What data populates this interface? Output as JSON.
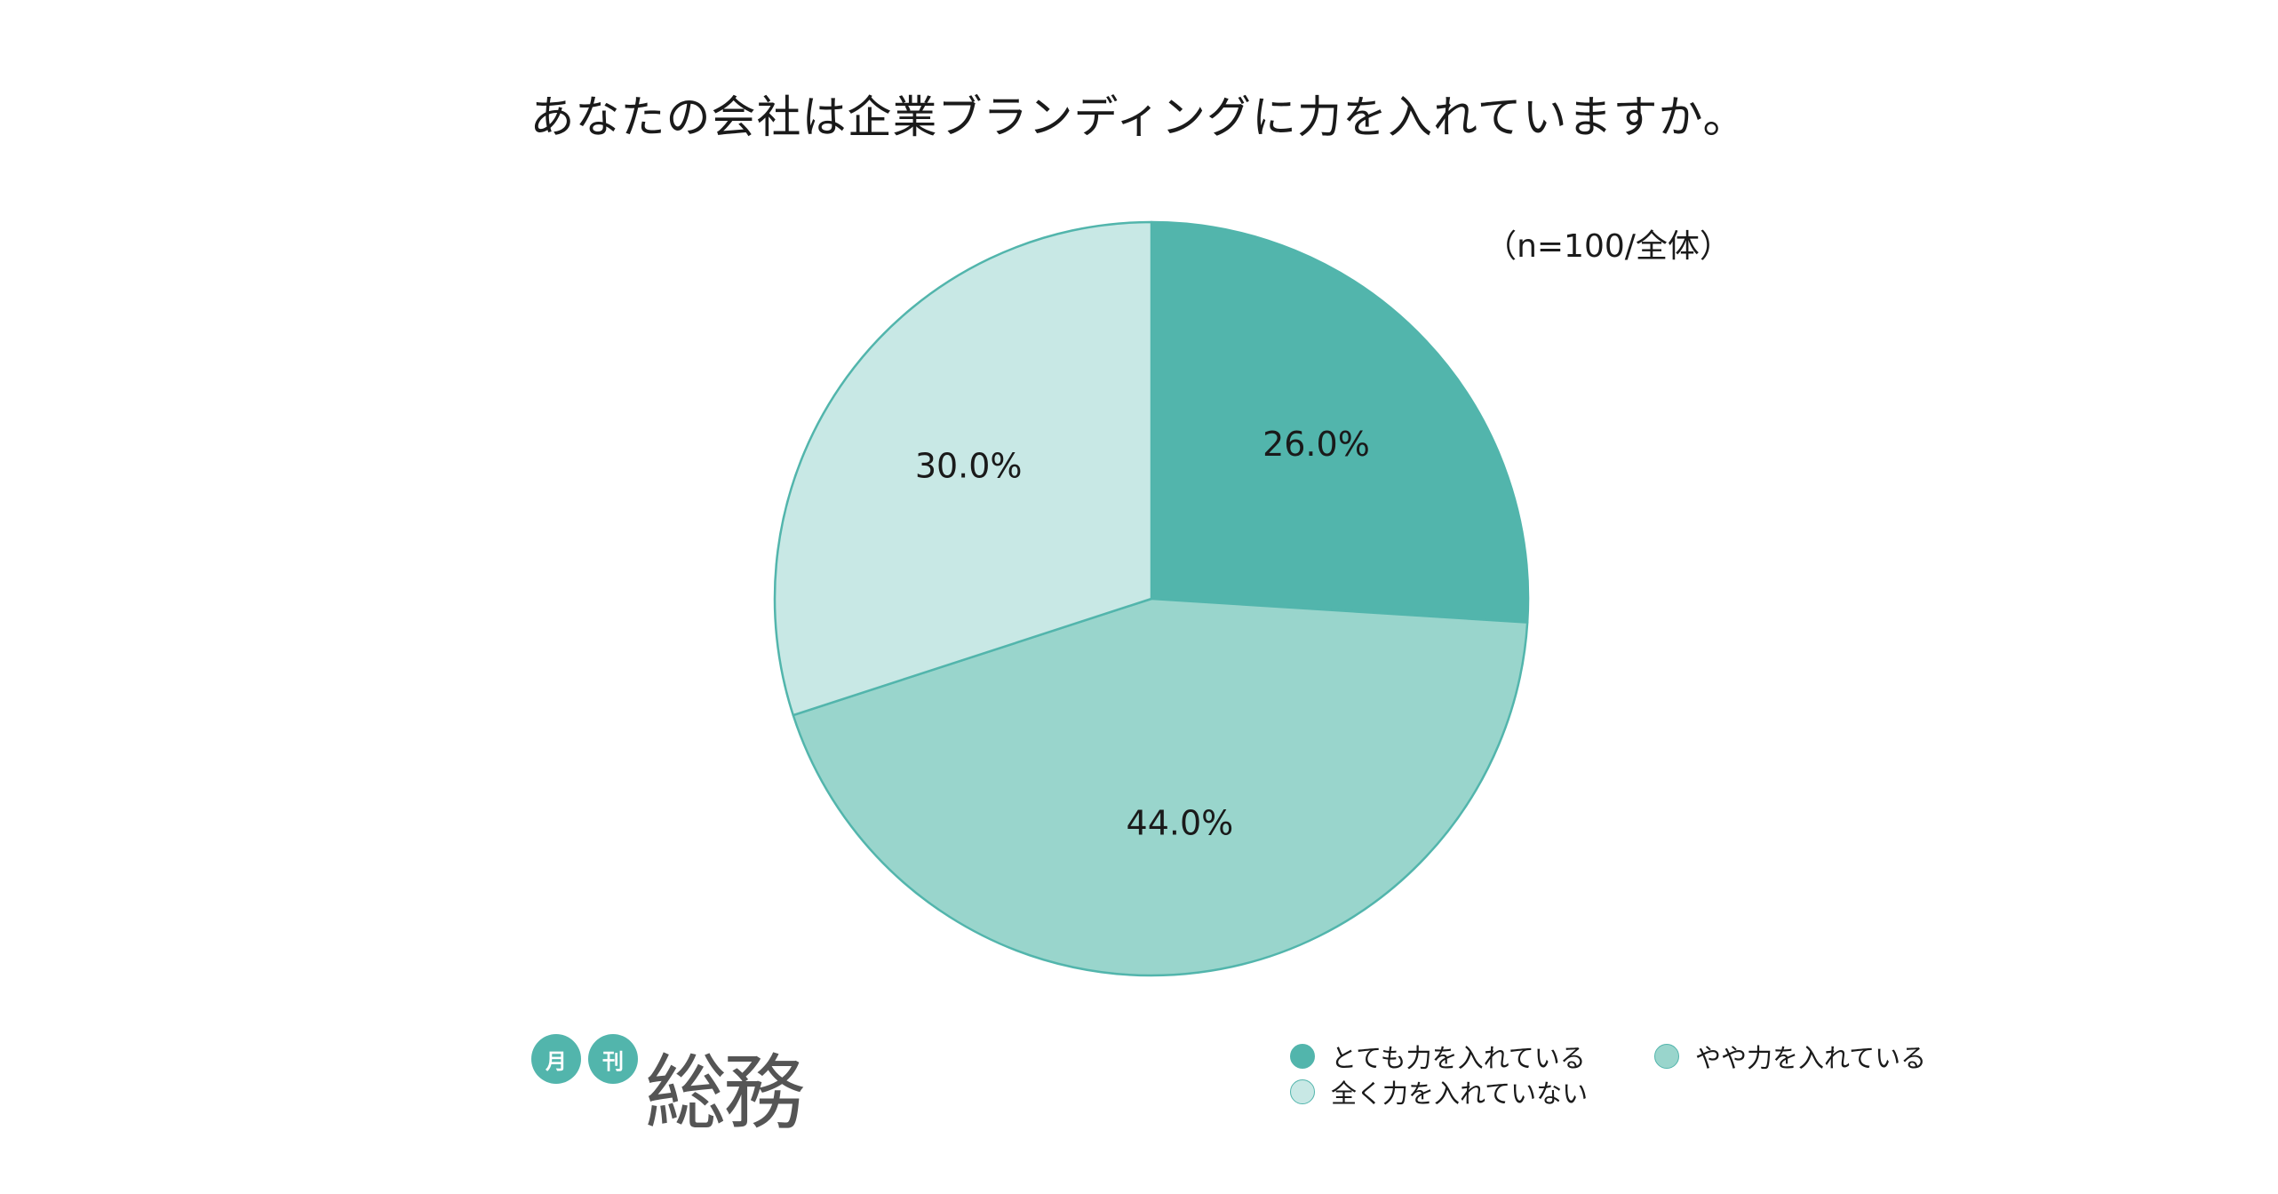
{
  "title": "あなたの会社は企業ブランディングに力を入れていますか。",
  "sample_note": "（n=100/全体）",
  "logo": {
    "mark1": "月",
    "mark2": "刊",
    "name": "総務",
    "color": "#52b5ac"
  },
  "chart_data": {
    "type": "pie",
    "title": "あなたの会社は企業ブランディングに力を入れていますか。",
    "note": "（n=100/全体）",
    "start": "12 o'clock",
    "direction": "clockwise",
    "legend_position": "bottom-right",
    "slices": [
      {
        "label": "とても力を入れている",
        "value": 26.0,
        "display": "26.0%",
        "color": "#52b5ac"
      },
      {
        "label": "やや力を入れている",
        "value": 44.0,
        "display": "44.0%",
        "color": "#99d5cc"
      },
      {
        "label": "全く力を入れていない",
        "value": 30.0,
        "display": "30.0%",
        "color": "#c8e8e5"
      }
    ],
    "edge_color": "#52b5ac"
  }
}
